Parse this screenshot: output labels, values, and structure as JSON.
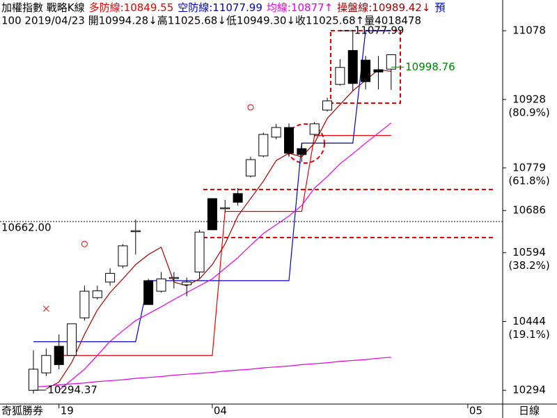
{
  "chart_data": {
    "type": "candlestick",
    "title": "加權指數 戰略K線",
    "subtitle": "100 2019/04/23 開10994.28↓高11025.68↓低10949.30↓收11025.68↑量4018478",
    "header_tail": "預",
    "header_tail_color": "#0000c0",
    "footer_left": "奇狐勝券",
    "footer_right": "日線",
    "categories": [
      null,
      null,
      "19",
      null,
      null,
      null,
      null,
      null,
      null,
      null,
      null,
      null,
      null,
      null,
      "04",
      null,
      null,
      null,
      null,
      null,
      null,
      null,
      null,
      null,
      null,
      null,
      null,
      null,
      null,
      null,
      null,
      null,
      null,
      null,
      "05"
    ],
    "open": [
      10294,
      10332,
      10390,
      10370,
      10452,
      10496,
      10530,
      10565,
      10642,
      10533,
      10510,
      10540,
      10524,
      10552,
      10712,
      10692,
      10723,
      10761,
      10805,
      10846,
      10867,
      10821,
      10852,
      10905,
      10961,
      11035,
      11014,
      10993,
      10994.28,
      null,
      null,
      null,
      null,
      null,
      null
    ],
    "high": [
      10381,
      10385,
      10416,
      10439,
      10522,
      10522,
      10560,
      10613,
      10666,
      10537,
      10552,
      10552,
      10540,
      10644,
      10712,
      10709,
      10735,
      10803,
      10856,
      10875,
      10876,
      10833,
      10879,
      10932,
      11016,
      11077.99,
      11023,
      11023,
      11025.68,
      null,
      null,
      null,
      null,
      null,
      null
    ],
    "low": [
      10287,
      10325,
      10340,
      10370,
      10446,
      10492,
      10522,
      10560,
      10590,
      10481,
      10507,
      10516,
      10499,
      10537,
      10644,
      10682,
      10697,
      10758,
      10802,
      10841,
      10803,
      10792,
      10847,
      10902,
      10958,
      10947,
      10950,
      10950,
      10949.3,
      null,
      null,
      null,
      null,
      null,
      null
    ],
    "close": [
      10340,
      10370,
      10350,
      10439,
      10510,
      10511,
      10549,
      10609,
      10642,
      10481,
      10537,
      10540,
      10530,
      10639,
      10644,
      10692,
      10704,
      10797,
      10852,
      10867,
      10811,
      10808,
      10875,
      10925,
      10998,
      10963,
      10967,
      10988,
      11025.68,
      null,
      null,
      null,
      null,
      null,
      null
    ],
    "up_color": "#ffffff",
    "down_color": "#000000",
    "series": [
      {
        "name": "多防線:10849.55",
        "color": "#e00000",
        "values": [
          null,
          null,
          10370,
          10370,
          10370,
          10370,
          10370,
          10370,
          10370,
          10370,
          10370,
          10370,
          10370,
          10370,
          10370,
          10684,
          10684,
          10684,
          10684,
          10684,
          10684,
          10684,
          10849.55,
          10849.55,
          10849.55,
          10849.55,
          10849.55,
          10849.55,
          10849.55,
          null,
          null,
          null,
          null,
          null,
          null
        ]
      },
      {
        "name": "空防線:11077.99",
        "color": "#0000c0",
        "values": [
          10400,
          10400,
          10400,
          10400,
          10400,
          10400,
          10400,
          10400,
          10400,
          10533,
          10533,
          10533,
          10533,
          10533,
          10533,
          10533,
          10533,
          10533,
          10533,
          10533,
          10533,
          10833,
          10833,
          10833,
          10833,
          10833,
          11077.99,
          11077.99,
          11077.99,
          null,
          null,
          null,
          null,
          null,
          null
        ]
      },
      {
        "name": "均線:10877↑",
        "color": "#e000e0",
        "values": [
          null,
          null,
          10294,
          10317,
          10340,
          10370,
          10401,
          10424,
          10446,
          10461,
          10476,
          10492,
          10507,
          10522,
          10537,
          10560,
          10583,
          10610,
          10636,
          10655,
          10674,
          10697,
          10735,
          10760,
          10788,
          10810,
          10833,
          10855,
          10877,
          null,
          null,
          null,
          null,
          null,
          null
        ]
      },
      {
        "name": "操盤線:10989.42↓",
        "color": "#a00000",
        "values": [
          null,
          10297,
          10312,
          10355,
          10416,
          10469,
          10507,
          10537,
          10568,
          10590,
          10606,
          10530,
          10522,
          10537,
          10568,
          10613,
          10674,
          10712,
          10750,
          10795,
          10811,
          10803,
          10833,
          10887,
          10917,
          10947,
          10970,
          10993,
          10989.42,
          null,
          null,
          null,
          null,
          null,
          null
        ]
      },
      {
        "color": "#e000e0",
        "values": [
          10301,
          10303,
          10306,
          10308,
          10310,
          10313,
          10315,
          10317,
          10320,
          10322,
          10324,
          10327,
          10329,
          10331,
          10333,
          10336,
          10338,
          10340,
          10343,
          10345,
          10347,
          10350,
          10352,
          10354,
          10357,
          10359,
          10361,
          10364,
          10366,
          null,
          null,
          null,
          null,
          null,
          null
        ]
      }
    ],
    "signals": [
      {
        "index": 4,
        "value": 10613,
        "shape": "circle",
        "color": "#e00000"
      },
      {
        "index": 17,
        "value": 10911,
        "shape": "circle",
        "color": "#e00000"
      },
      {
        "index": 1,
        "value": 10472,
        "shape": "cross",
        "color": "#e00000"
      }
    ],
    "annotations": [
      {
        "value": 10662,
        "label": "10662.00",
        "color": "#000000",
        "position": "left-line"
      },
      {
        "value": 11077.99,
        "label": "11077.99",
        "color": "#000000",
        "index": 25
      },
      {
        "value": 10998.76,
        "label": "10998.76",
        "color": "#008000",
        "index": 29
      },
      {
        "value": 10294.37,
        "label": "10294.37",
        "color": "#000000",
        "index": 1
      }
    ],
    "ylim": [
      10264,
      11145
    ],
    "yticks": [
      {
        "value": 11078,
        "label": "11078"
      },
      {
        "value": 10928,
        "label": "10928",
        "sublabel": "(80.9%)"
      },
      {
        "value": 10779,
        "label": "10779",
        "sublabel": "(61.8%)"
      },
      {
        "value": 10686,
        "label": "10686"
      },
      {
        "value": 10594,
        "label": "10594",
        "sublabel": "(38.2%)"
      },
      {
        "value": 10444,
        "label": "10444",
        "sublabel": "(19.1%)"
      },
      {
        "value": 10294,
        "label": "10294"
      }
    ]
  }
}
